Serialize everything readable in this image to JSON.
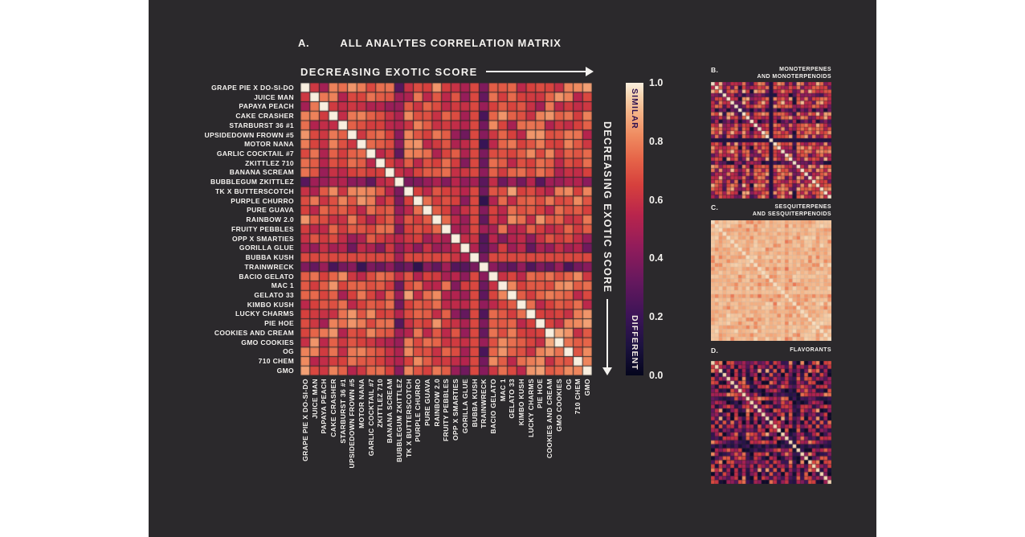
{
  "page": {
    "background": "#ffffff",
    "panel_background": "#2b292c",
    "text_color": "#f4f2ef"
  },
  "panel_a": {
    "label": "A.",
    "title": "ALL ANALYTES CORRELATION MATRIX",
    "x_arrow_label": "DECREASING EXOTIC SCORE",
    "y_arrow_label": "DECREASING EXOTIC SCORE",
    "strains": [
      "GRAPE PIE X DO-SI-DO",
      "JUICE MAN",
      "PAPAYA PEACH",
      "CAKE CRASHER",
      "STARBURST 36 #1",
      "UPSIDEDOWN FROWN #5",
      "MOTOR NANA",
      "GARLIC COCKTAIL #7",
      "ZKITTLEZ 710",
      "BANANA SCREAM",
      "BUBBLEGUM ZKITTLEZ",
      "TK X BUTTERSCOTCH",
      "PURPLE CHURRO",
      "PURE GUAVA",
      "RAINBOW 2.0",
      "FRUITY PEBBLES",
      "OPP X SMARTIES",
      "GORILLA GLUE",
      "BUBBA KUSH",
      "TRAINWRECK",
      "BACIO GELATO",
      "MAC 1",
      "GELATO 33",
      "KIMBO KUSH",
      "LUCKY CHARMS",
      "PIE HOE",
      "COOKIES AND CREAM",
      "GMO COOKIES",
      "OG",
      "710 CHEM",
      "GMO"
    ]
  },
  "colorbar": {
    "top_label": "SIMILAR",
    "bottom_label": "DIFFERENT",
    "ticks": [
      "1.0",
      "0.8",
      "0.6",
      "0.4",
      "0.2",
      "0.0"
    ],
    "range": [
      0.0,
      1.0
    ],
    "stops": [
      [
        0.0,
        "#04051D"
      ],
      [
        0.1,
        "#1C1240"
      ],
      [
        0.2,
        "#3B1457"
      ],
      [
        0.32,
        "#65185E"
      ],
      [
        0.44,
        "#921C5B"
      ],
      [
        0.55,
        "#B9254C"
      ],
      [
        0.65,
        "#D6403D"
      ],
      [
        0.74,
        "#E66549"
      ],
      [
        0.82,
        "#EF8B60"
      ],
      [
        0.9,
        "#F4B488"
      ],
      [
        0.96,
        "#F6D7B4"
      ],
      [
        1.0,
        "#F9EFDF"
      ]
    ]
  },
  "panel_b": {
    "label": "B.",
    "title_lines": [
      "MONOTERPENES",
      "AND MONOTERPENOIDS"
    ]
  },
  "panel_c": {
    "label": "C.",
    "title_lines": [
      "SESQUITERPENES",
      "AND SESQUITERPENOIDS"
    ]
  },
  "panel_d": {
    "label": "D.",
    "title_lines": [
      "FLAVORANTS"
    ]
  },
  "chart_data": [
    {
      "id": "A",
      "type": "heatmap",
      "title": "ALL ANALYTES CORRELATION MATRIX",
      "n": 31,
      "labels": [
        "GRAPE PIE X DO-SI-DO",
        "JUICE MAN",
        "PAPAYA PEACH",
        "CAKE CRASHER",
        "STARBURST 36 #1",
        "UPSIDEDOWN FROWN #5",
        "MOTOR NANA",
        "GARLIC COCKTAIL #7",
        "ZKITTLEZ 710",
        "BANANA SCREAM",
        "BUBBLEGUM ZKITTLEZ",
        "TK X BUTTERSCOTCH",
        "PURPLE CHURRO",
        "PURE GUAVA",
        "RAINBOW 2.0",
        "FRUITY PEBBLES",
        "OPP X SMARTIES",
        "GORILLA GLUE",
        "BUBBA KUSH",
        "TRAINWRECK",
        "BACIO GELATO",
        "MAC 1",
        "GELATO 33",
        "KIMBO KUSH",
        "LUCKY CHARMS",
        "PIE HOE",
        "COOKIES AND CREAM",
        "GMO COOKIES",
        "OG",
        "710 CHEM",
        "GMO"
      ],
      "axis_note": "rows and columns ordered by decreasing exotic score",
      "value_range": [
        0,
        1
      ],
      "colormap": "rocket-like (dark navy-purple = different 0.0, crimson mid, peach, cream = similar 1.0)",
      "values_are_estimates": true,
      "diagonal": 100,
      "min": 10,
      "max": 97,
      "mixa": 1,
      "mixb": 7,
      "levels": [
        74,
        70,
        64,
        74,
        68,
        72,
        70,
        74,
        66,
        70,
        46,
        72,
        70,
        66,
        70,
        68,
        58,
        50,
        64,
        34,
        68,
        74,
        74,
        66,
        70,
        74,
        74,
        78,
        80,
        80,
        76
      ],
      "texture": [
        -6,
        3,
        -12,
        8,
        0,
        -4,
        10,
        -8,
        5,
        -2,
        12,
        -10,
        2,
        7,
        -15,
        4,
        -1,
        9,
        -5,
        1,
        -18,
        6,
        -3,
        14,
        -7
      ],
      "notable_low_correlation_strains": [
        "BUBBLEGUM ZKITTLEZ",
        "GORILLA GLUE",
        "TRAINWRECK"
      ]
    },
    {
      "id": "B",
      "type": "heatmap",
      "title": "MONOTERPENES AND MONOTERPENOIDS",
      "n": 31,
      "labels_shown": false,
      "value_range": [
        0,
        1
      ],
      "values_are_estimates": true,
      "diagonal": 98,
      "min": 8,
      "max": 96,
      "mixa": 3,
      "mixb": 5,
      "levels": [
        70,
        62,
        72,
        38,
        66,
        74,
        64,
        28,
        70,
        66,
        34,
        72,
        62,
        70,
        66,
        24,
        68,
        64,
        72,
        60,
        70,
        32,
        66,
        72,
        64,
        70,
        62,
        74,
        68,
        70,
        64
      ],
      "texture": [
        -12,
        6,
        -22,
        14,
        0,
        -7,
        16,
        -14,
        9,
        -4,
        20,
        -18,
        4,
        11,
        -26,
        7,
        -2,
        15,
        -9,
        2,
        -30,
        10,
        -6,
        22,
        -13
      ]
    },
    {
      "id": "C",
      "type": "heatmap",
      "title": "SESQUITERPENES AND SESQUITERPENOIDS",
      "n": 31,
      "labels_shown": false,
      "value_range": [
        0,
        1
      ],
      "values_are_estimates": true,
      "diagonal": 97,
      "min": 70,
      "max": 97,
      "mixa": 1,
      "mixb": 7,
      "grid": "#cdbba8",
      "levels": [
        90,
        92,
        90,
        88,
        92,
        90,
        92,
        90,
        88,
        92,
        90,
        92,
        88,
        90,
        92,
        90,
        88,
        92,
        90,
        86,
        90,
        92,
        90,
        88,
        92,
        90,
        92,
        90,
        92,
        90,
        92
      ],
      "texture": [
        -6,
        2,
        -1,
        3,
        0,
        -3,
        4,
        -2,
        1,
        -5,
        3,
        -1,
        2,
        -8,
        3,
        0,
        -2,
        4,
        -3,
        1,
        -10,
        2,
        0,
        3,
        -1
      ]
    },
    {
      "id": "D",
      "type": "heatmap",
      "title": "FLAVORANTS",
      "n": 31,
      "labels_shown": false,
      "value_range": [
        0,
        1
      ],
      "values_are_estimates": true,
      "diagonal": 96,
      "min": 4,
      "max": 92,
      "mixa": 7,
      "mixb": 3,
      "levels": [
        40,
        30,
        44,
        26,
        38,
        32,
        46,
        28,
        36,
        42,
        24,
        34,
        40,
        28,
        44,
        30,
        38,
        26,
        42,
        32,
        36,
        44,
        28,
        38,
        30,
        42,
        34,
        40,
        26,
        36,
        32
      ],
      "texture": [
        -16,
        24,
        -8,
        32,
        -22,
        12,
        40,
        -12,
        18,
        -26,
        46,
        -10,
        28,
        -20,
        8,
        36,
        -24,
        16,
        -4,
        44,
        -14,
        10,
        -28,
        26,
        14
      ]
    }
  ]
}
